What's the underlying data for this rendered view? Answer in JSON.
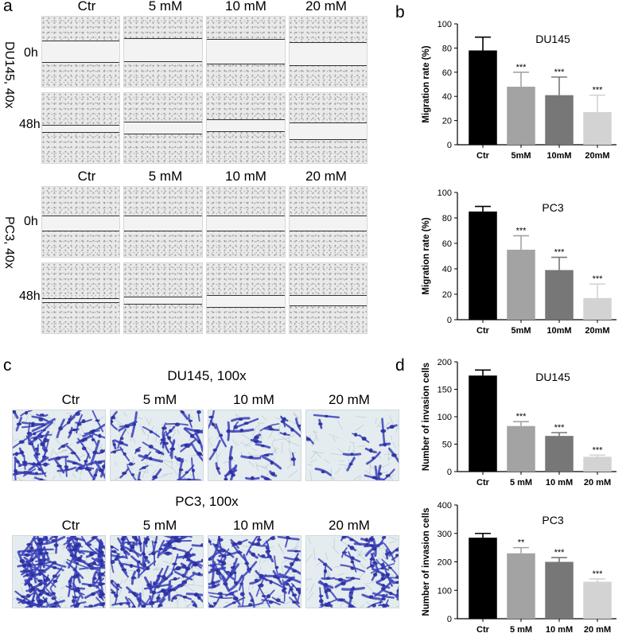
{
  "panels": {
    "a": {
      "letter": "a",
      "du145": {
        "side_label": "DU145, 40x",
        "cols": [
          "Ctr",
          "5 mM",
          "10 mM",
          "20 mM"
        ],
        "rows": [
          "0h",
          "48h"
        ]
      },
      "pc3": {
        "side_label": "PC3, 40x",
        "cols": [
          "Ctr",
          "5 mM",
          "10 mM",
          "20 mM"
        ],
        "rows": [
          "0h",
          "48h"
        ]
      }
    },
    "b": {
      "letter": "b"
    },
    "c": {
      "letter": "c",
      "du145": {
        "title": "DU145, 100x",
        "cols": [
          "Ctr",
          "5 mM",
          "10 mM",
          "20 mM"
        ]
      },
      "pc3": {
        "title": "PC3, 100x",
        "cols": [
          "Ctr",
          "5 mM",
          "10 mM",
          "20 mM"
        ]
      }
    },
    "d": {
      "letter": "d"
    }
  },
  "colors": {
    "bar": [
      "#000000",
      "#a3a3a3",
      "#777777",
      "#d3d3d3"
    ],
    "stain": "#3a3fb8"
  },
  "chart_data": [
    {
      "type": "bar",
      "panel": "b",
      "title": "DU145",
      "ylabel": "Migration rate (%)",
      "xlabel": "",
      "categories": [
        "Ctr",
        "5mM",
        "10mM",
        "20mM"
      ],
      "values": [
        78,
        48,
        41,
        27
      ],
      "errors": [
        11,
        12,
        15,
        14
      ],
      "significance": [
        "",
        "***",
        "***",
        "***"
      ],
      "ylim": [
        0,
        100
      ],
      "yticks": [
        0,
        20,
        40,
        60,
        80,
        100
      ]
    },
    {
      "type": "bar",
      "panel": "b",
      "title": "PC3",
      "ylabel": "Migration rate (%)",
      "xlabel": "",
      "categories": [
        "Ctr",
        "5mM",
        "10mM",
        "20mM"
      ],
      "values": [
        85,
        55,
        39,
        17
      ],
      "errors": [
        4,
        11,
        10,
        11
      ],
      "significance": [
        "",
        "***",
        "***",
        "***"
      ],
      "ylim": [
        0,
        100
      ],
      "yticks": [
        0,
        20,
        40,
        60,
        80,
        100
      ]
    },
    {
      "type": "bar",
      "panel": "d",
      "title": "DU145",
      "ylabel": "Number of invasion cells",
      "xlabel": "",
      "categories": [
        "Ctr",
        "5 mM",
        "10 mM",
        "20 mM"
      ],
      "values": [
        175,
        83,
        65,
        27
      ],
      "errors": [
        10,
        8,
        6,
        3
      ],
      "significance": [
        "",
        "***",
        "***",
        "***"
      ],
      "ylim": [
        0,
        200
      ],
      "yticks": [
        0,
        50,
        100,
        150,
        200
      ]
    },
    {
      "type": "bar",
      "panel": "d",
      "title": "PC3",
      "ylabel": "Number of invasion cells",
      "xlabel": "",
      "categories": [
        "Ctr",
        "5 mM",
        "10 mM",
        "20 mM"
      ],
      "values": [
        285,
        230,
        200,
        130
      ],
      "errors": [
        15,
        20,
        15,
        10
      ],
      "significance": [
        "",
        "**",
        "***",
        "***"
      ],
      "ylim": [
        0,
        400
      ],
      "yticks": [
        0,
        100,
        200,
        300,
        400
      ]
    }
  ]
}
